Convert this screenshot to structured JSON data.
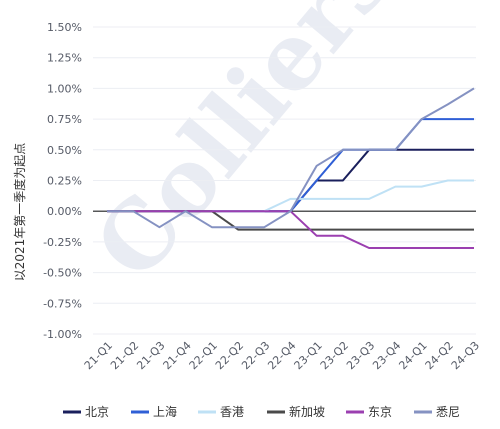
{
  "chart_data": {
    "type": "line",
    "ylabel": "以2021年第一季度为起点",
    "categories": [
      "21-Q1",
      "21-Q2",
      "21-Q3",
      "21-Q4",
      "22-Q1",
      "22-Q2",
      "22-Q3",
      "22-Q4",
      "23-Q1",
      "23-Q2",
      "23-Q3",
      "23-Q4",
      "24-Q1",
      "24-Q2",
      "24-Q3"
    ],
    "y_ticks": [
      "1.50%",
      "1.25%",
      "1.00%",
      "0.75%",
      "0.50%",
      "0.25%",
      "0.00%",
      "-0.25%",
      "-0.50%",
      "-0.75%",
      "-1.00%"
    ],
    "ylim": [
      -1.0,
      1.5
    ],
    "legend_position": "bottom",
    "watermark": "Colliers",
    "series": [
      {
        "name": "北京",
        "color": "#1a1f5c",
        "values": [
          0,
          0,
          0,
          0,
          0,
          0,
          0,
          0,
          0.25,
          0.25,
          0.5,
          0.5,
          0.5,
          0.5,
          0.5
        ]
      },
      {
        "name": "上海",
        "color": "#2f5fd6",
        "values": [
          0,
          0,
          0,
          0,
          0,
          0,
          0,
          0,
          0.25,
          0.5,
          0.5,
          0.5,
          0.75,
          0.75,
          0.75
        ]
      },
      {
        "name": "香港",
        "color": "#bfe1f5",
        "values": [
          0,
          0,
          0,
          0,
          0,
          0,
          0,
          0.1,
          0.1,
          0.1,
          0.1,
          0.2,
          0.2,
          0.25,
          0.25
        ]
      },
      {
        "name": "新加坡",
        "color": "#4a4a4a",
        "values": [
          0,
          0,
          0,
          0,
          0,
          -0.15,
          -0.15,
          -0.15,
          -0.15,
          -0.15,
          -0.15,
          -0.15,
          -0.15,
          -0.15,
          -0.15
        ]
      },
      {
        "name": "东京",
        "color": "#9b3fb0",
        "values": [
          0,
          0,
          0,
          0,
          0,
          0,
          0,
          0,
          -0.2,
          -0.2,
          -0.3,
          -0.3,
          -0.3,
          -0.3,
          -0.3
        ]
      },
      {
        "name": "悉尼",
        "color": "#8592c2",
        "values": [
          0,
          0,
          -0.13,
          0,
          -0.13,
          -0.13,
          -0.13,
          0,
          0.37,
          0.5,
          0.5,
          0.5,
          0.75,
          0.87,
          1.0
        ]
      }
    ]
  }
}
